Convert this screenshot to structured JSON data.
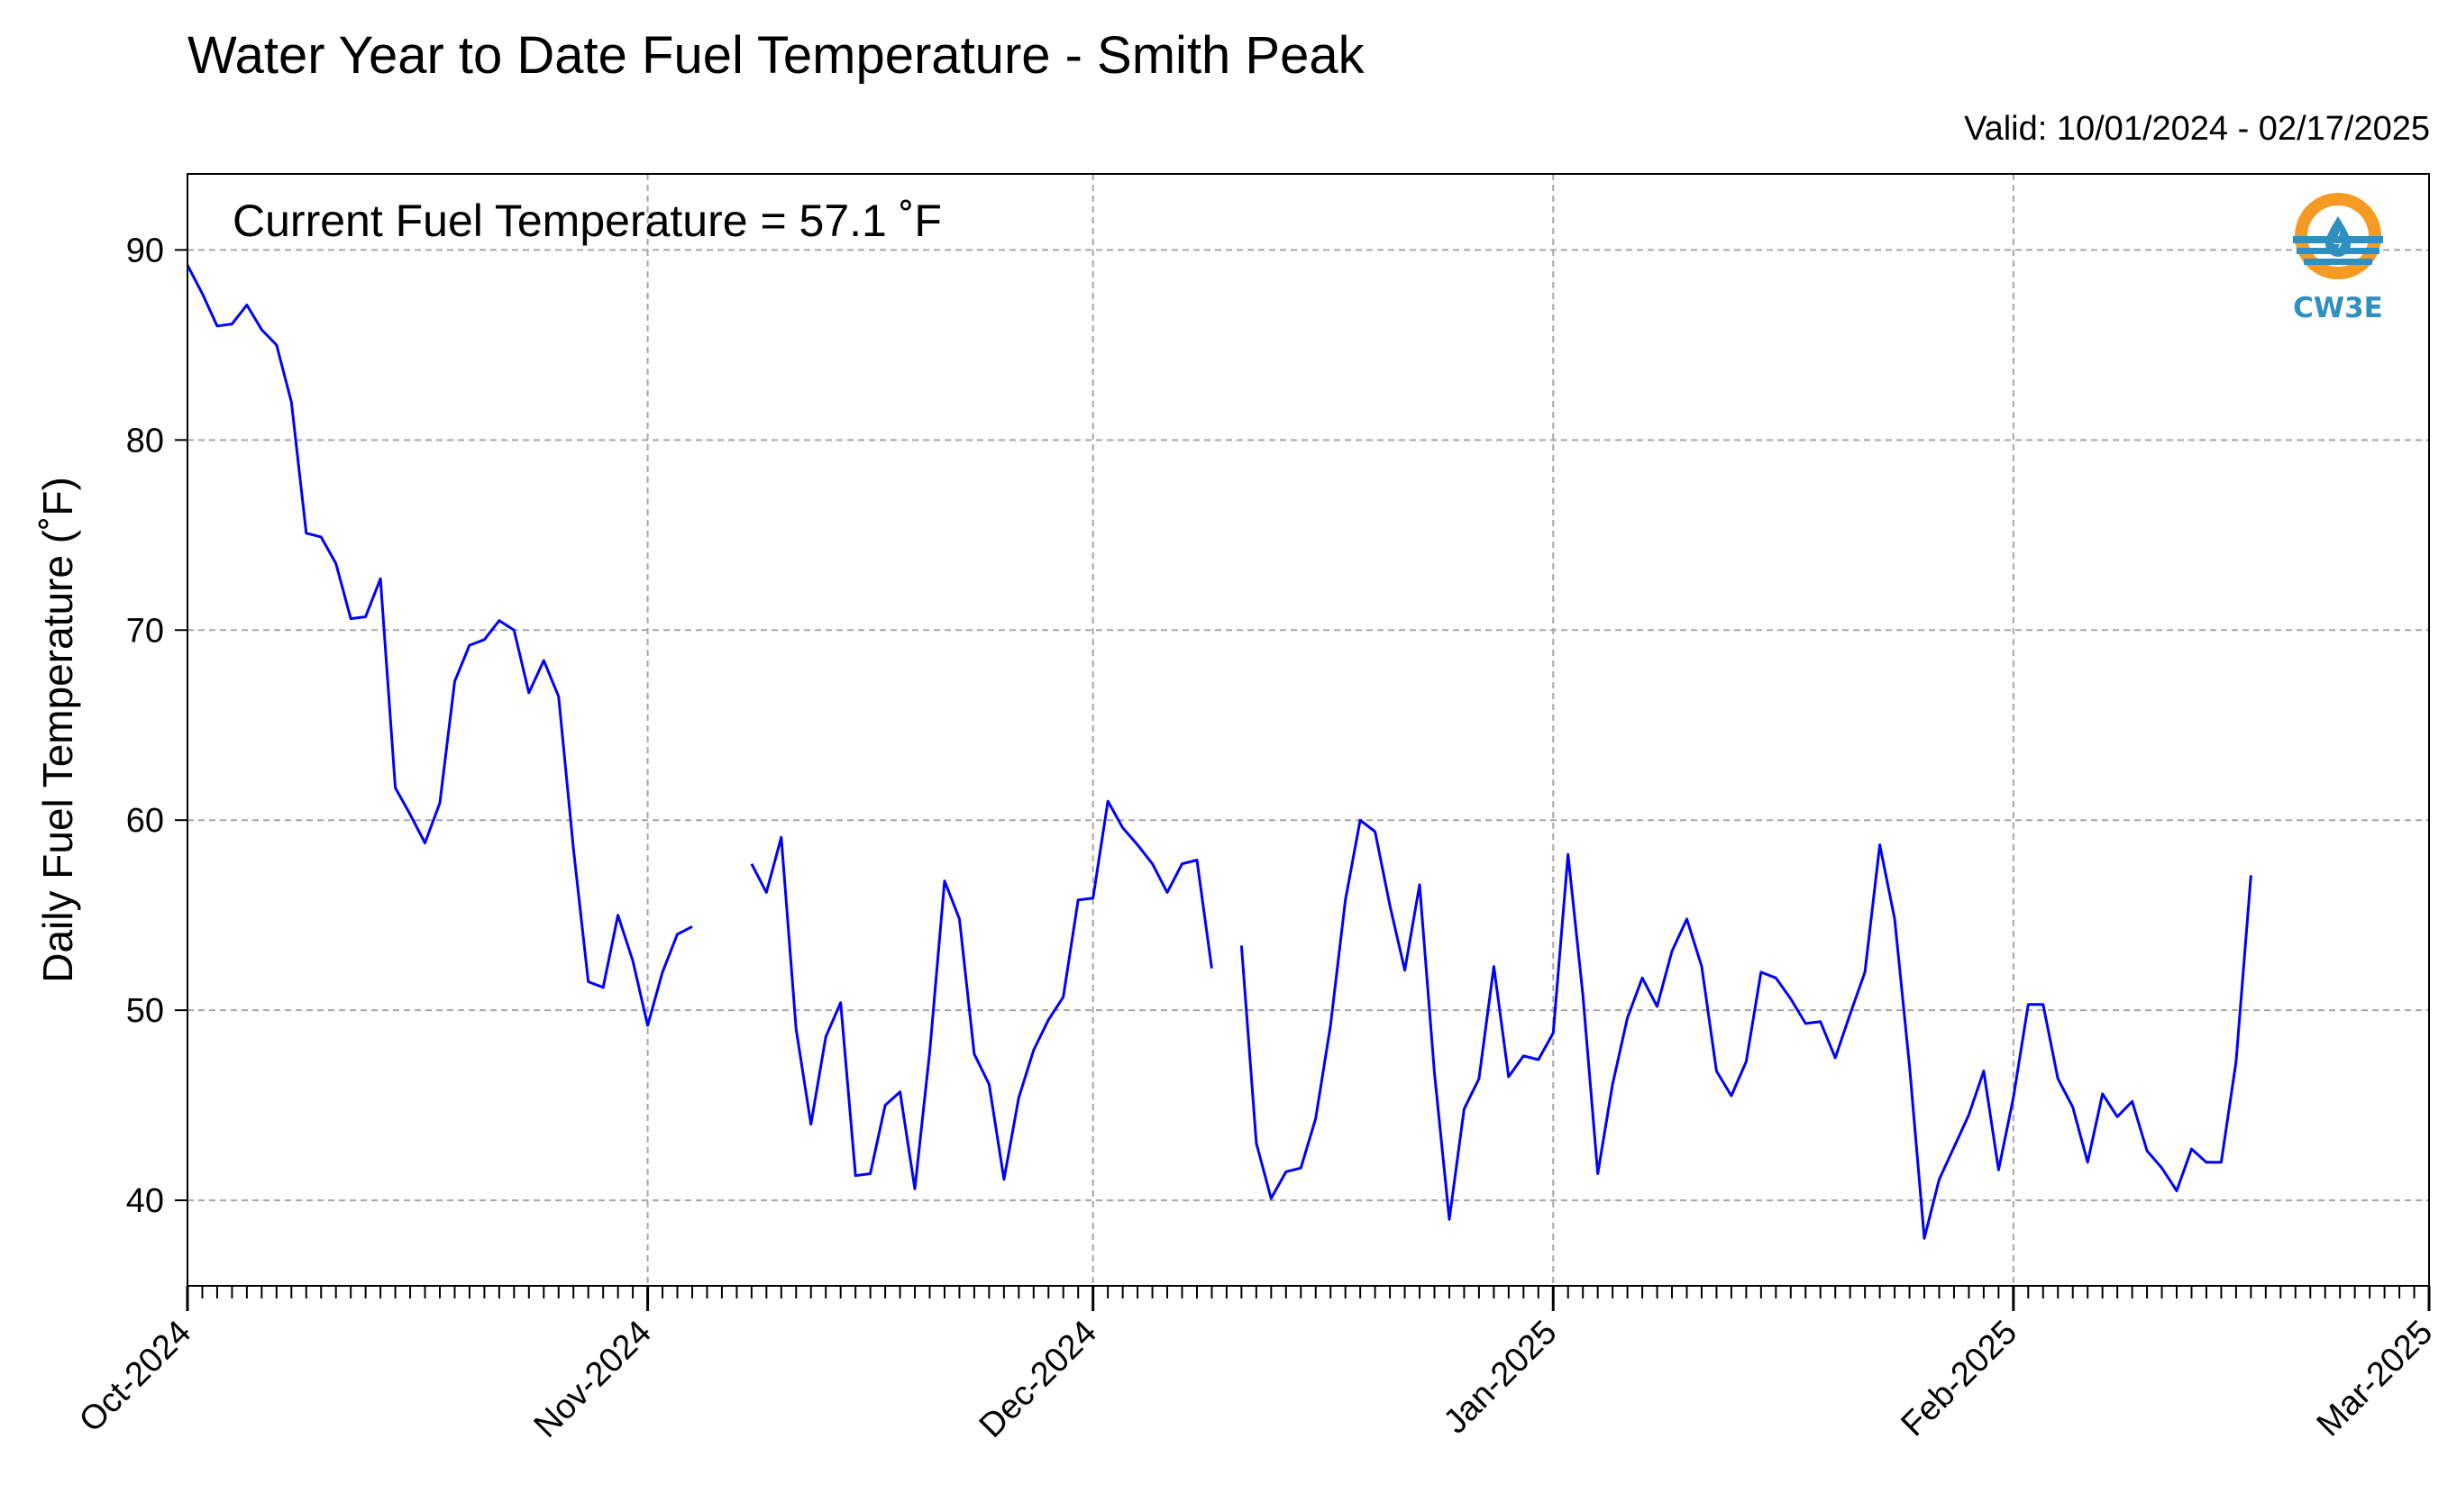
{
  "header": {
    "title": "Water Year to Date Fuel Temperature - Smith Peak",
    "valid": "Valid: 10/01/2024 - 02/17/2025"
  },
  "chart_data": {
    "type": "line",
    "title": "Water Year to Date Fuel Temperature - Smith Peak",
    "subtitle": "Valid: 10/01/2024 - 02/17/2025",
    "ylabel": "Daily Fuel Temperature (˚F)",
    "xlabel": "",
    "annotation": "Current Fuel Temperature = 57.1 ˚F",
    "ylim": [
      35.5,
      94
    ],
    "xlim": [
      "2024-10-01",
      "2025-03-01"
    ],
    "yticks": [
      40,
      50,
      60,
      70,
      80,
      90
    ],
    "xticks": [
      {
        "date": "2024-10-01",
        "label": "Oct-2024"
      },
      {
        "date": "2024-11-01",
        "label": "Nov-2024"
      },
      {
        "date": "2024-12-01",
        "label": "Dec-2024"
      },
      {
        "date": "2025-01-01",
        "label": "Jan-2025"
      },
      {
        "date": "2025-02-01",
        "label": "Feb-2025"
      },
      {
        "date": "2025-03-01",
        "label": "Mar-2025"
      }
    ],
    "grid": true,
    "line_color": "#0000ff",
    "series": [
      {
        "start_date": "2024-10-01",
        "values": [
          89.2,
          87.7,
          86.0,
          86.1,
          87.1,
          85.8,
          85.0,
          82.0,
          75.1,
          74.9,
          73.5,
          70.6,
          70.7,
          72.7,
          61.7,
          60.3,
          58.8,
          60.9,
          67.3,
          69.2,
          69.5,
          70.5,
          70.0,
          66.7,
          68.4,
          66.5,
          58.5,
          51.5,
          51.2,
          55.0,
          52.6,
          49.2,
          52.0,
          54.0,
          54.4,
          null,
          null,
          null,
          57.7,
          56.2,
          59.1,
          49.0,
          44.0,
          48.6,
          50.4,
          41.3,
          41.4,
          45.0,
          45.7,
          40.6,
          47.8,
          56.8,
          54.8,
          47.7,
          46.1,
          41.1,
          45.4,
          47.9,
          49.5,
          50.7,
          55.8,
          55.9,
          61.0,
          59.6,
          58.7,
          57.7,
          56.2,
          57.7,
          57.9,
          52.2,
          null,
          53.4,
          43.0,
          40.1,
          41.5,
          41.7,
          44.3,
          49.2,
          55.8,
          60.0,
          59.4,
          55.5,
          52.1,
          56.6,
          46.7,
          39.0,
          44.8,
          46.4,
          52.3,
          46.5,
          47.6,
          47.4,
          48.8,
          58.2,
          50.8,
          41.4,
          46.1,
          49.6,
          51.7,
          50.2,
          53.1,
          54.8,
          52.3,
          46.8,
          45.5,
          47.3,
          52.0,
          51.7,
          50.6,
          49.3,
          49.4,
          47.5,
          49.8,
          52.0,
          58.7,
          54.8,
          47.1,
          38.0,
          41.1,
          42.8,
          44.5,
          46.8,
          41.6,
          45.4,
          50.3,
          50.3,
          46.4,
          44.9,
          42.0,
          45.6,
          44.4,
          45.2,
          42.6,
          41.7,
          40.5,
          42.7,
          42.0,
          42.0,
          47.3,
          57.1
        ]
      }
    ]
  },
  "logo": {
    "text": "CW3E",
    "colors": {
      "ring": "#f59a23",
      "waves": "#2f8fbf"
    }
  }
}
